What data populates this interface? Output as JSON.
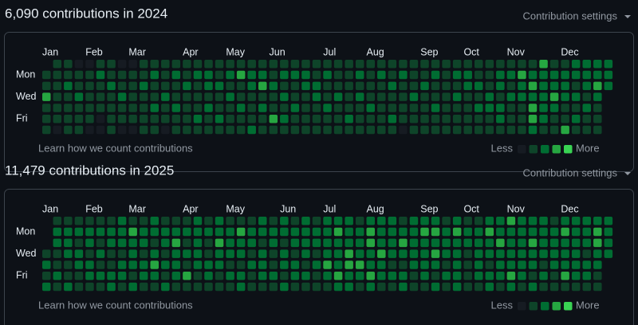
{
  "level_colors": [
    "#161b22",
    "#0e4429",
    "#006d32",
    "#26a641",
    "#39d353"
  ],
  "sections": [
    {
      "title": "6,090 contributions in 2024",
      "settings": "Contribution settings",
      "months": [
        "Jan",
        "Feb",
        "Mar",
        "Apr",
        "May",
        "Jun",
        "Jul",
        "Aug",
        "Sep",
        "Oct",
        "Nov",
        "Dec"
      ],
      "days": [
        "Mon",
        "Wed",
        "Fri"
      ],
      "learn": "Learn how we count contributions",
      "less": "Less",
      "more": "More",
      "weeks": [
        [
          null,
          1,
          1,
          3,
          1,
          1,
          1
        ],
        [
          1,
          1,
          1,
          1,
          1,
          1,
          0
        ],
        [
          1,
          1,
          2,
          1,
          1,
          1,
          1
        ],
        [
          0,
          1,
          1,
          2,
          1,
          1,
          1
        ],
        [
          0,
          1,
          1,
          1,
          1,
          1,
          0
        ],
        [
          1,
          2,
          1,
          1,
          1,
          0,
          0
        ],
        [
          1,
          1,
          2,
          1,
          1,
          1,
          1
        ],
        [
          0,
          1,
          1,
          2,
          1,
          1,
          0
        ],
        [
          0,
          1,
          1,
          1,
          1,
          1,
          0
        ],
        [
          1,
          1,
          2,
          1,
          1,
          1,
          1
        ],
        [
          1,
          2,
          1,
          1,
          2,
          1,
          1
        ],
        [
          1,
          1,
          1,
          2,
          1,
          1,
          0
        ],
        [
          1,
          2,
          1,
          1,
          2,
          1,
          1
        ],
        [
          1,
          1,
          2,
          1,
          1,
          1,
          1
        ],
        [
          1,
          2,
          1,
          1,
          1,
          2,
          1
        ],
        [
          1,
          2,
          2,
          1,
          2,
          1,
          1
        ],
        [
          1,
          1,
          2,
          1,
          1,
          2,
          1
        ],
        [
          1,
          2,
          1,
          2,
          1,
          1,
          1
        ],
        [
          1,
          3,
          1,
          1,
          2,
          1,
          1
        ],
        [
          1,
          2,
          2,
          1,
          1,
          1,
          2
        ],
        [
          1,
          2,
          3,
          1,
          2,
          1,
          1
        ],
        [
          1,
          1,
          2,
          1,
          1,
          3,
          1
        ],
        [
          1,
          2,
          1,
          2,
          1,
          2,
          1
        ],
        [
          1,
          2,
          1,
          1,
          2,
          1,
          1
        ],
        [
          1,
          2,
          2,
          1,
          1,
          1,
          1
        ],
        [
          1,
          1,
          2,
          2,
          1,
          1,
          1
        ],
        [
          1,
          2,
          1,
          1,
          2,
          1,
          1
        ],
        [
          1,
          1,
          1,
          2,
          1,
          1,
          1
        ],
        [
          1,
          1,
          1,
          1,
          1,
          2,
          1
        ],
        [
          1,
          2,
          1,
          2,
          1,
          1,
          1
        ],
        [
          1,
          1,
          1,
          1,
          2,
          1,
          1
        ],
        [
          1,
          2,
          1,
          1,
          1,
          1,
          1
        ],
        [
          1,
          1,
          2,
          1,
          1,
          2,
          1
        ],
        [
          1,
          2,
          1,
          1,
          1,
          1,
          0
        ],
        [
          1,
          1,
          1,
          2,
          1,
          1,
          1
        ],
        [
          1,
          1,
          2,
          1,
          1,
          1,
          1
        ],
        [
          1,
          2,
          1,
          1,
          2,
          1,
          1
        ],
        [
          1,
          1,
          1,
          1,
          1,
          1,
          1
        ],
        [
          1,
          2,
          1,
          2,
          1,
          1,
          1
        ],
        [
          1,
          2,
          2,
          1,
          1,
          1,
          1
        ],
        [
          1,
          1,
          2,
          1,
          2,
          1,
          1
        ],
        [
          1,
          1,
          1,
          2,
          2,
          1,
          1
        ],
        [
          1,
          2,
          2,
          1,
          2,
          2,
          1
        ],
        [
          1,
          2,
          1,
          2,
          1,
          1,
          1
        ],
        [
          1,
          3,
          2,
          2,
          1,
          1,
          1
        ],
        [
          1,
          2,
          3,
          2,
          3,
          3,
          2
        ],
        [
          3,
          2,
          2,
          2,
          2,
          2,
          1
        ],
        [
          1,
          2,
          2,
          3,
          2,
          1,
          1
        ],
        [
          1,
          2,
          2,
          2,
          1,
          1,
          3
        ],
        [
          2,
          2,
          1,
          2,
          1,
          2,
          1
        ],
        [
          2,
          2,
          2,
          1,
          2,
          1,
          1
        ],
        [
          2,
          2,
          3,
          2,
          1,
          1,
          1
        ],
        [
          2,
          2,
          2,
          null,
          null,
          null,
          null
        ]
      ]
    },
    {
      "title": "11,479 contributions in 2025",
      "settings": "Contribution settings",
      "months": [
        "Jan",
        "Feb",
        "Mar",
        "Apr",
        "May",
        "Jun",
        "Jul",
        "Aug",
        "Sep",
        "Oct",
        "Nov",
        "Dec"
      ],
      "days": [
        "Mon",
        "Wed",
        "Fri"
      ],
      "learn": "Learn how we count contributions",
      "less": "Less",
      "more": "More",
      "weeks": [
        [
          null,
          null,
          null,
          1,
          2,
          1,
          2
        ],
        [
          1,
          2,
          2,
          1,
          1,
          2,
          1
        ],
        [
          1,
          2,
          2,
          2,
          1,
          1,
          2
        ],
        [
          1,
          2,
          1,
          2,
          2,
          1,
          1
        ],
        [
          1,
          2,
          2,
          1,
          2,
          2,
          1
        ],
        [
          1,
          2,
          1,
          2,
          1,
          2,
          1
        ],
        [
          1,
          2,
          2,
          1,
          1,
          2,
          2
        ],
        [
          2,
          2,
          2,
          1,
          2,
          2,
          1
        ],
        [
          1,
          3,
          2,
          2,
          2,
          1,
          2
        ],
        [
          1,
          2,
          2,
          1,
          2,
          2,
          1
        ],
        [
          2,
          2,
          1,
          2,
          3,
          2,
          1
        ],
        [
          1,
          2,
          2,
          1,
          2,
          1,
          2
        ],
        [
          1,
          2,
          3,
          2,
          2,
          2,
          1
        ],
        [
          1,
          2,
          1,
          2,
          1,
          3,
          1
        ],
        [
          2,
          2,
          2,
          2,
          2,
          1,
          1
        ],
        [
          1,
          2,
          1,
          1,
          2,
          2,
          1
        ],
        [
          2,
          2,
          3,
          2,
          2,
          1,
          1
        ],
        [
          1,
          2,
          2,
          2,
          1,
          2,
          1
        ],
        [
          1,
          3,
          2,
          2,
          1,
          2,
          2
        ],
        [
          1,
          2,
          2,
          1,
          2,
          1,
          1
        ],
        [
          2,
          2,
          1,
          2,
          2,
          2,
          1
        ],
        [
          1,
          2,
          2,
          1,
          1,
          2,
          1
        ],
        [
          2,
          2,
          1,
          2,
          2,
          1,
          2
        ],
        [
          1,
          2,
          2,
          1,
          2,
          2,
          1
        ],
        [
          2,
          2,
          2,
          2,
          1,
          2,
          1
        ],
        [
          1,
          2,
          2,
          1,
          2,
          1,
          1
        ],
        [
          2,
          2,
          2,
          2,
          3,
          2,
          1
        ],
        [
          2,
          3,
          2,
          2,
          2,
          3,
          2
        ],
        [
          2,
          2,
          2,
          3,
          3,
          2,
          2
        ],
        [
          1,
          2,
          2,
          2,
          3,
          2,
          1
        ],
        [
          2,
          3,
          3,
          2,
          2,
          3,
          2
        ],
        [
          2,
          2,
          2,
          3,
          2,
          2,
          1
        ],
        [
          2,
          2,
          2,
          2,
          1,
          2,
          1
        ],
        [
          1,
          2,
          3,
          2,
          1,
          2,
          2
        ],
        [
          2,
          2,
          2,
          2,
          2,
          1,
          1
        ],
        [
          2,
          3,
          2,
          2,
          2,
          2,
          1
        ],
        [
          2,
          3,
          2,
          3,
          2,
          1,
          2
        ],
        [
          1,
          2,
          2,
          2,
          1,
          2,
          1
        ],
        [
          2,
          3,
          2,
          2,
          2,
          2,
          2
        ],
        [
          1,
          2,
          2,
          1,
          1,
          1,
          1
        ],
        [
          1,
          2,
          2,
          2,
          2,
          2,
          1
        ],
        [
          2,
          3,
          2,
          2,
          1,
          2,
          2
        ],
        [
          2,
          2,
          3,
          2,
          2,
          2,
          1
        ],
        [
          3,
          2,
          2,
          2,
          2,
          3,
          2
        ],
        [
          2,
          2,
          2,
          2,
          2,
          2,
          1
        ],
        [
          2,
          2,
          3,
          2,
          2,
          1,
          2
        ],
        [
          2,
          2,
          2,
          2,
          1,
          2,
          1
        ],
        [
          1,
          2,
          2,
          2,
          2,
          1,
          1
        ],
        [
          2,
          3,
          2,
          2,
          2,
          3,
          1
        ],
        [
          2,
          2,
          2,
          2,
          2,
          2,
          1
        ],
        [
          2,
          2,
          2,
          1,
          2,
          2,
          1
        ],
        [
          2,
          3,
          3,
          2,
          2,
          1,
          1
        ],
        [
          2,
          2,
          2,
          2,
          null,
          null,
          null
        ]
      ]
    }
  ]
}
